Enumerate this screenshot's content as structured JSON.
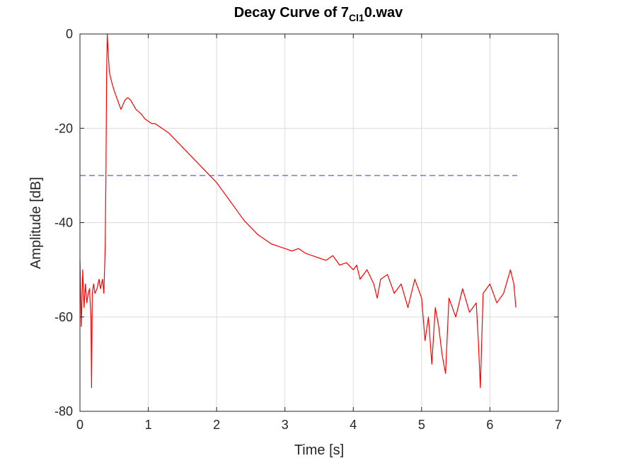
{
  "chart_data": {
    "type": "line",
    "title": "Decay Curve of 7",
    "title_subscript": "Cl1",
    "title_suffix": "0.wav",
    "xlabel": "Time [s]",
    "ylabel": "Amplitude [dB]",
    "xlim": [
      0,
      7
    ],
    "ylim": [
      -80,
      0
    ],
    "xticks": [
      0,
      1,
      2,
      3,
      4,
      5,
      6,
      7
    ],
    "yticks": [
      0,
      -20,
      -40,
      -60,
      -80
    ],
    "xtick_labels": [
      "0",
      "1",
      "2",
      "3",
      "4",
      "5",
      "6",
      "7"
    ],
    "ytick_labels": [
      "0",
      "-20",
      "-40",
      "-60",
      "-80"
    ],
    "grid": true,
    "series": [
      {
        "style": "solid",
        "color": "#ff0000",
        "x": [
          0.0,
          0.02,
          0.04,
          0.06,
          0.08,
          0.1,
          0.12,
          0.14,
          0.16,
          0.17,
          0.18,
          0.2,
          0.22,
          0.25,
          0.28,
          0.3,
          0.33,
          0.35,
          0.37,
          0.38,
          0.39,
          0.4,
          0.41,
          0.43,
          0.46,
          0.5,
          0.55,
          0.6,
          0.63,
          0.66,
          0.7,
          0.74,
          0.78,
          0.82,
          0.86,
          0.9,
          0.95,
          1.0,
          1.05,
          1.1,
          1.2,
          1.3,
          1.4,
          1.5,
          1.6,
          1.7,
          1.8,
          1.9,
          2.0,
          2.1,
          2.2,
          2.3,
          2.4,
          2.5,
          2.6,
          2.7,
          2.8,
          2.9,
          3.0,
          3.1,
          3.2,
          3.3,
          3.4,
          3.5,
          3.6,
          3.7,
          3.8,
          3.9,
          4.0,
          4.05,
          4.1,
          4.2,
          4.3,
          4.35,
          4.4,
          4.5,
          4.6,
          4.7,
          4.8,
          4.9,
          5.0,
          5.05,
          5.1,
          5.15,
          5.2,
          5.25,
          5.3,
          5.35,
          5.4,
          5.5,
          5.6,
          5.7,
          5.8,
          5.83,
          5.86,
          5.9,
          6.0,
          6.1,
          6.2,
          6.3,
          6.35,
          6.38
        ],
        "y": [
          -48,
          -62,
          -50,
          -58,
          -53,
          -57,
          -55,
          -54,
          -60,
          -75,
          -55,
          -53,
          -55,
          -54,
          -52,
          -54,
          -52,
          -55,
          -45,
          -30,
          -8,
          0,
          -3,
          -8,
          -10,
          -12,
          -14,
          -16,
          -15,
          -14,
          -13.5,
          -14,
          -15,
          -16,
          -16.5,
          -17,
          -18,
          -18.5,
          -19,
          -19,
          -20,
          -21,
          -22.5,
          -24,
          -25.5,
          -27,
          -28.5,
          -30,
          -31.5,
          -33.5,
          -35.5,
          -37.5,
          -39.5,
          -41,
          -42.5,
          -43.5,
          -44.5,
          -45,
          -45.5,
          -46,
          -45.5,
          -46.5,
          -47,
          -47.5,
          -48,
          -47,
          -49,
          -48.5,
          -50,
          -49,
          -52,
          -50,
          -53,
          -56,
          -52,
          -51,
          -55,
          -53,
          -58,
          -52,
          -56,
          -65,
          -60,
          -70,
          -58,
          -62,
          -68,
          -72,
          -56,
          -60,
          -54,
          -59,
          -57,
          -65,
          -75,
          -55,
          -53,
          -57,
          -55,
          -50,
          -53,
          -58
        ]
      },
      {
        "style": "dashed",
        "color": "#5a5aff",
        "x": [
          0.0,
          6.4
        ],
        "y": [
          -30,
          -30
        ]
      }
    ]
  }
}
